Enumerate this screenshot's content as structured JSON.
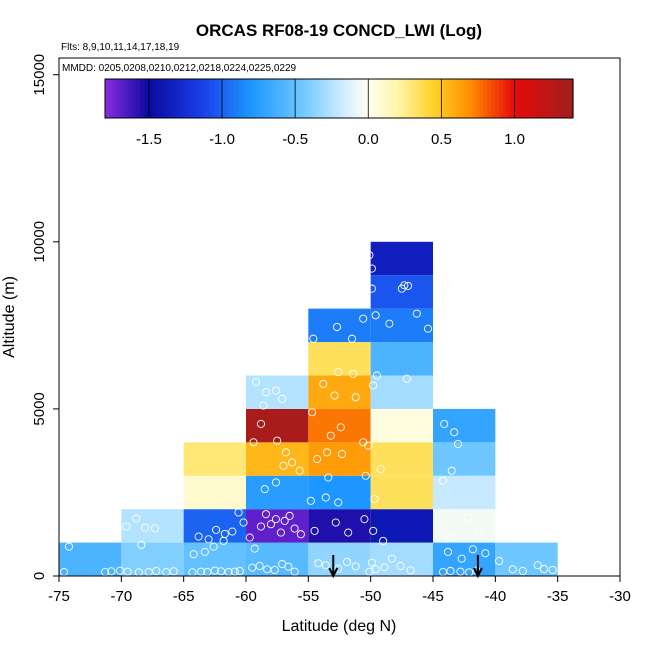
{
  "chart_data": {
    "type": "heatmap",
    "title": "ORCAS RF08-19 CONCD_LWI (Log)",
    "subtitle_flights": "Flts: 8,9,10,11,14,17,18,19",
    "subtitle_dates": "MMDD: 0205,0208,0210,0212,0218,0224,0225,0229",
    "xlabel": "Latitude (deg N)",
    "ylabel": "Altitude (m)",
    "xlim": [
      -75,
      -30
    ],
    "ylim": [
      0,
      15500
    ],
    "x_ticks": [
      -75,
      -70,
      -65,
      -60,
      -55,
      -50,
      -45,
      -40,
      -35,
      -30
    ],
    "y_ticks": [
      0,
      5000,
      10000,
      15000
    ],
    "colorbar": {
      "range": [
        -1.8,
        1.4
      ],
      "ticks": [
        -1.5,
        -1.0,
        -0.5,
        0.0,
        0.5,
        1.0
      ],
      "tick_labels": [
        "-1.5",
        "-1.0",
        "-0.5",
        "0.0",
        "0.5",
        "1.0"
      ]
    },
    "cells": [
      {
        "x0": -75,
        "x1": -70,
        "y0": 0,
        "y1": 1000,
        "value": -0.6
      },
      {
        "x0": -70,
        "x1": -65,
        "y0": 0,
        "y1": 1000,
        "value": -0.4
      },
      {
        "x0": -70,
        "x1": -65,
        "y0": 1000,
        "y1": 2000,
        "value": -0.25
      },
      {
        "x0": -65,
        "x1": -60,
        "y0": 0,
        "y1": 1000,
        "value": -0.5
      },
      {
        "x0": -65,
        "x1": -60,
        "y0": 1000,
        "y1": 2000,
        "value": -1.0
      },
      {
        "x0": -65,
        "x1": -60,
        "y0": 2000,
        "y1": 3000,
        "value": 0.1
      },
      {
        "x0": -65,
        "x1": -60,
        "y0": 3000,
        "y1": 4000,
        "value": 0.3
      },
      {
        "x0": -60,
        "x1": -55,
        "y0": 0,
        "y1": 1000,
        "value": -0.55
      },
      {
        "x0": -60,
        "x1": -55,
        "y0": 1000,
        "y1": 2000,
        "value": -1.7
      },
      {
        "x0": -60,
        "x1": -55,
        "y0": 2000,
        "y1": 3000,
        "value": -0.75
      },
      {
        "x0": -60,
        "x1": -55,
        "y0": 3000,
        "y1": 4000,
        "value": 0.55
      },
      {
        "x0": -60,
        "x1": -55,
        "y0": 4000,
        "y1": 5000,
        "value": 1.35
      },
      {
        "x0": -60,
        "x1": -55,
        "y0": 5000,
        "y1": 6000,
        "value": -0.25
      },
      {
        "x0": -55,
        "x1": -50,
        "y0": 0,
        "y1": 1000,
        "value": -0.35
      },
      {
        "x0": -55,
        "x1": -50,
        "y0": 1000,
        "y1": 2000,
        "value": -1.55
      },
      {
        "x0": -55,
        "x1": -50,
        "y0": 2000,
        "y1": 3000,
        "value": -0.8
      },
      {
        "x0": -55,
        "x1": -50,
        "y0": 3000,
        "y1": 4000,
        "value": 0.65
      },
      {
        "x0": -55,
        "x1": -50,
        "y0": 4000,
        "y1": 5000,
        "value": 0.75
      },
      {
        "x0": -55,
        "x1": -50,
        "y0": 5000,
        "y1": 6000,
        "value": 0.6
      },
      {
        "x0": -55,
        "x1": -50,
        "y0": 6000,
        "y1": 7000,
        "value": 0.35
      },
      {
        "x0": -55,
        "x1": -50,
        "y0": 7000,
        "y1": 8000,
        "value": -0.9
      },
      {
        "x0": -50,
        "x1": -45,
        "y0": 0,
        "y1": 1000,
        "value": -0.3
      },
      {
        "x0": -50,
        "x1": -45,
        "y0": 1000,
        "y1": 2000,
        "value": -1.4
      },
      {
        "x0": -50,
        "x1": -45,
        "y0": 2000,
        "y1": 3000,
        "value": 0.35
      },
      {
        "x0": -50,
        "x1": -45,
        "y0": 3000,
        "y1": 4000,
        "value": 0.35
      },
      {
        "x0": -50,
        "x1": -45,
        "y0": 4000,
        "y1": 5000,
        "value": 0.05
      },
      {
        "x0": -50,
        "x1": -45,
        "y0": 5000,
        "y1": 6000,
        "value": -0.3
      },
      {
        "x0": -50,
        "x1": -45,
        "y0": 6000,
        "y1": 7000,
        "value": -0.6
      },
      {
        "x0": -50,
        "x1": -45,
        "y0": 7000,
        "y1": 8000,
        "value": -0.9
      },
      {
        "x0": -50,
        "x1": -45,
        "y0": 8000,
        "y1": 9000,
        "value": -1.05
      },
      {
        "x0": -50,
        "x1": -45,
        "y0": 9000,
        "y1": 10000,
        "value": -1.35
      },
      {
        "x0": -45,
        "x1": -40,
        "y0": 0,
        "y1": 1000,
        "value": -0.7
      },
      {
        "x0": -45,
        "x1": -40,
        "y0": 1000,
        "y1": 2000,
        "value": -0.05
      },
      {
        "x0": -45,
        "x1": -40,
        "y0": 2000,
        "y1": 3000,
        "value": -0.2
      },
      {
        "x0": -45,
        "x1": -40,
        "y0": 3000,
        "y1": 4000,
        "value": -0.45
      },
      {
        "x0": -45,
        "x1": -40,
        "y0": 4000,
        "y1": 5000,
        "value": -0.7
      },
      {
        "x0": -40,
        "x1": -35,
        "y0": 0,
        "y1": 1000,
        "value": -0.45
      }
    ],
    "points": [
      [
        -74.6,
        120
      ],
      [
        -74.2,
        880
      ],
      [
        -71.3,
        120
      ],
      [
        -70.8,
        140
      ],
      [
        -70.1,
        160
      ],
      [
        -69.5,
        130
      ],
      [
        -68.6,
        110
      ],
      [
        -67.8,
        120
      ],
      [
        -67.2,
        150
      ],
      [
        -66.4,
        120
      ],
      [
        -65.8,
        140
      ],
      [
        -69.6,
        1480
      ],
      [
        -68.8,
        1720
      ],
      [
        -68.1,
        1450
      ],
      [
        -67.3,
        1430
      ],
      [
        -68.4,
        930
      ],
      [
        -64.3,
        110
      ],
      [
        -63.6,
        130
      ],
      [
        -63.1,
        120
      ],
      [
        -62.5,
        160
      ],
      [
        -62.0,
        140
      ],
      [
        -61.4,
        120
      ],
      [
        -60.9,
        130
      ],
      [
        -60.5,
        150
      ],
      [
        -63.8,
        1180
      ],
      [
        -63.0,
        1100
      ],
      [
        -62.4,
        1380
      ],
      [
        -61.7,
        1260
      ],
      [
        -64.2,
        650
      ],
      [
        -63.3,
        720
      ],
      [
        -62.6,
        880
      ],
      [
        -61.8,
        1050
      ],
      [
        -61.1,
        1330
      ],
      [
        -60.6,
        1900
      ],
      [
        -60.2,
        1600
      ],
      [
        -59.7,
        1150
      ],
      [
        -59.3,
        820
      ],
      [
        -58.8,
        1480
      ],
      [
        -58.4,
        1850
      ],
      [
        -58.0,
        1550
      ],
      [
        -57.6,
        1700
      ],
      [
        -57.2,
        1300
      ],
      [
        -56.9,
        1650
      ],
      [
        -56.5,
        1800
      ],
      [
        -56.1,
        1420
      ],
      [
        -55.6,
        1250
      ],
      [
        -59.5,
        250
      ],
      [
        -58.9,
        300
      ],
      [
        -58.3,
        200
      ],
      [
        -57.7,
        180
      ],
      [
        -57.1,
        360
      ],
      [
        -56.6,
        280
      ],
      [
        -56.1,
        130
      ],
      [
        -58.5,
        2600
      ],
      [
        -57.6,
        2800
      ],
      [
        -56.3,
        3400
      ],
      [
        -55.7,
        3150
      ],
      [
        -57.0,
        3300
      ],
      [
        -59.4,
        4000
      ],
      [
        -58.8,
        4550
      ],
      [
        -58.4,
        5500
      ],
      [
        -57.6,
        5550
      ],
      [
        -57.1,
        5300
      ],
      [
        -57.5,
        4050
      ],
      [
        -56.8,
        3700
      ],
      [
        -59.2,
        5800
      ],
      [
        -58.6,
        5100
      ],
      [
        -54.8,
        2250
      ],
      [
        -53.6,
        2350
      ],
      [
        -52.6,
        2200
      ],
      [
        -53.4,
        2950
      ],
      [
        -52.3,
        3650
      ],
      [
        -54.3,
        3500
      ],
      [
        -53.5,
        3700
      ],
      [
        -54.7,
        4900
      ],
      [
        -53.2,
        4200
      ],
      [
        -52.4,
        4450
      ],
      [
        -53.8,
        5750
      ],
      [
        -52.9,
        5400
      ],
      [
        -52.6,
        6100
      ],
      [
        -51.4,
        6050
      ],
      [
        -51.2,
        5350
      ],
      [
        -54.6,
        7100
      ],
      [
        -52.7,
        7450
      ],
      [
        -51.5,
        7100
      ],
      [
        -50.6,
        7700
      ],
      [
        -54.5,
        1350
      ],
      [
        -52.8,
        1600
      ],
      [
        -51.8,
        1300
      ],
      [
        -54.2,
        380
      ],
      [
        -53.6,
        320
      ],
      [
        -52.6,
        220
      ],
      [
        -51.9,
        420
      ],
      [
        -51.2,
        290
      ],
      [
        -50.6,
        4000
      ],
      [
        -50.2,
        3900
      ],
      [
        -50.4,
        3000
      ],
      [
        -49.7,
        2300
      ],
      [
        -49.2,
        3200
      ],
      [
        -49.8,
        5700
      ],
      [
        -49.5,
        6000
      ],
      [
        -47.1,
        5900
      ],
      [
        -48.5,
        7550
      ],
      [
        -46.3,
        7850
      ],
      [
        -45.4,
        7400
      ],
      [
        -49.9,
        8600
      ],
      [
        -47.5,
        8600
      ],
      [
        -47.3,
        8700
      ],
      [
        -47.0,
        8680
      ],
      [
        -49.9,
        9200
      ],
      [
        -50.1,
        9600
      ],
      [
        -49.6,
        7800
      ],
      [
        -50.5,
        1700
      ],
      [
        -49.8,
        1350
      ],
      [
        -49.9,
        400
      ],
      [
        -49.6,
        200
      ],
      [
        -48.9,
        260
      ],
      [
        -48.3,
        520
      ],
      [
        -47.6,
        300
      ],
      [
        -46.8,
        170
      ],
      [
        -50.1,
        130
      ],
      [
        -49.0,
        1050
      ],
      [
        -44.2,
        120
      ],
      [
        -43.6,
        150
      ],
      [
        -42.8,
        130
      ],
      [
        -42.1,
        110
      ],
      [
        -41.5,
        160
      ],
      [
        -43.8,
        720
      ],
      [
        -42.7,
        520
      ],
      [
        -41.8,
        800
      ],
      [
        -40.8,
        680
      ],
      [
        -39.7,
        450
      ],
      [
        -38.6,
        200
      ],
      [
        -37.8,
        150
      ],
      [
        -36.6,
        320
      ],
      [
        -36.1,
        210
      ],
      [
        -35.4,
        180
      ],
      [
        -44.5,
        1420
      ],
      [
        -43.6,
        1150
      ],
      [
        -42.2,
        1750
      ],
      [
        -41.3,
        1350
      ],
      [
        -44.2,
        2850
      ],
      [
        -43.5,
        3150
      ],
      [
        -43.0,
        3950
      ],
      [
        -44.1,
        4550
      ],
      [
        -43.3,
        4300
      ]
    ],
    "arrows_lat": [
      -53.0,
      -41.4
    ]
  }
}
